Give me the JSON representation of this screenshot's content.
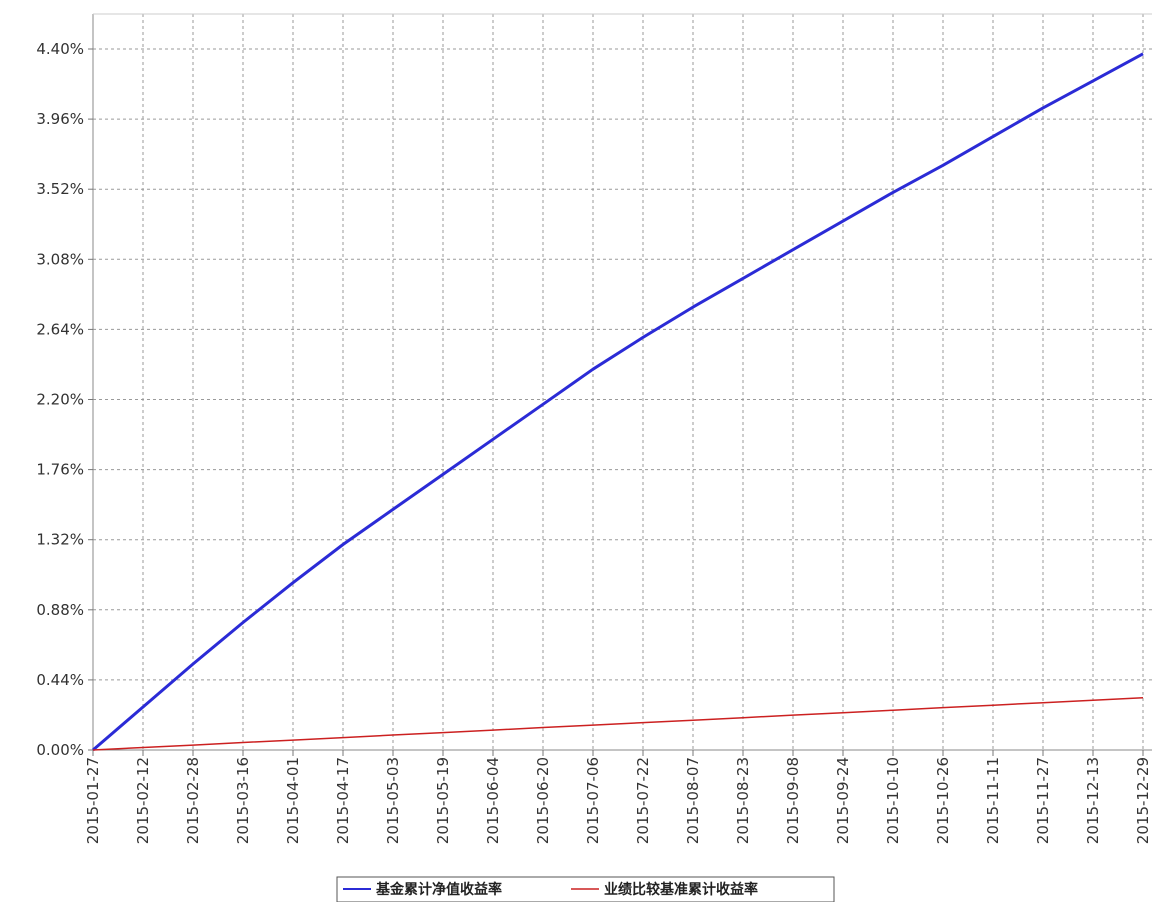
{
  "chart_data": {
    "type": "line",
    "title": "",
    "xlabel": "",
    "ylabel": "",
    "x_tick_labels": [
      "2015-01-27",
      "2015-02-12",
      "2015-02-28",
      "2015-03-16",
      "2015-04-01",
      "2015-04-17",
      "2015-05-03",
      "2015-05-19",
      "2015-06-04",
      "2015-06-20",
      "2015-07-06",
      "2015-07-22",
      "2015-08-07",
      "2015-08-23",
      "2015-09-08",
      "2015-09-24",
      "2015-10-10",
      "2015-10-26",
      "2015-11-11",
      "2015-11-27",
      "2015-12-13",
      "2015-12-29"
    ],
    "y_tick_labels": [
      "0.00%",
      "0.44%",
      "0.88%",
      "1.32%",
      "1.76%",
      "2.20%",
      "2.64%",
      "3.08%",
      "3.52%",
      "3.96%",
      "4.40%"
    ],
    "ylim": [
      0.0,
      4.4
    ],
    "y_unit": "%",
    "grid": true,
    "legend_position": "bottom",
    "x": [
      "2015-01-27",
      "2015-02-12",
      "2015-02-28",
      "2015-03-16",
      "2015-04-01",
      "2015-04-17",
      "2015-05-03",
      "2015-05-19",
      "2015-06-04",
      "2015-06-20",
      "2015-07-06",
      "2015-07-22",
      "2015-08-07",
      "2015-08-23",
      "2015-09-08",
      "2015-09-24",
      "2015-10-10",
      "2015-10-26",
      "2015-11-11",
      "2015-11-27",
      "2015-12-13",
      "2015-12-29"
    ],
    "series": [
      {
        "name": "基金累计净值收益率",
        "color": "#2b2bd6",
        "values": [
          0.0,
          0.27,
          0.54,
          0.8,
          1.05,
          1.29,
          1.51,
          1.73,
          1.95,
          2.17,
          2.39,
          2.59,
          2.78,
          2.96,
          3.14,
          3.32,
          3.5,
          3.67,
          3.85,
          4.03,
          4.2,
          4.37
        ]
      },
      {
        "name": "业绩比较基准累计收益率",
        "color": "#cc2020",
        "values": [
          0.0,
          0.016,
          0.031,
          0.047,
          0.062,
          0.078,
          0.094,
          0.109,
          0.125,
          0.141,
          0.156,
          0.172,
          0.187,
          0.203,
          0.219,
          0.234,
          0.25,
          0.266,
          0.281,
          0.297,
          0.312,
          0.328
        ]
      }
    ]
  }
}
